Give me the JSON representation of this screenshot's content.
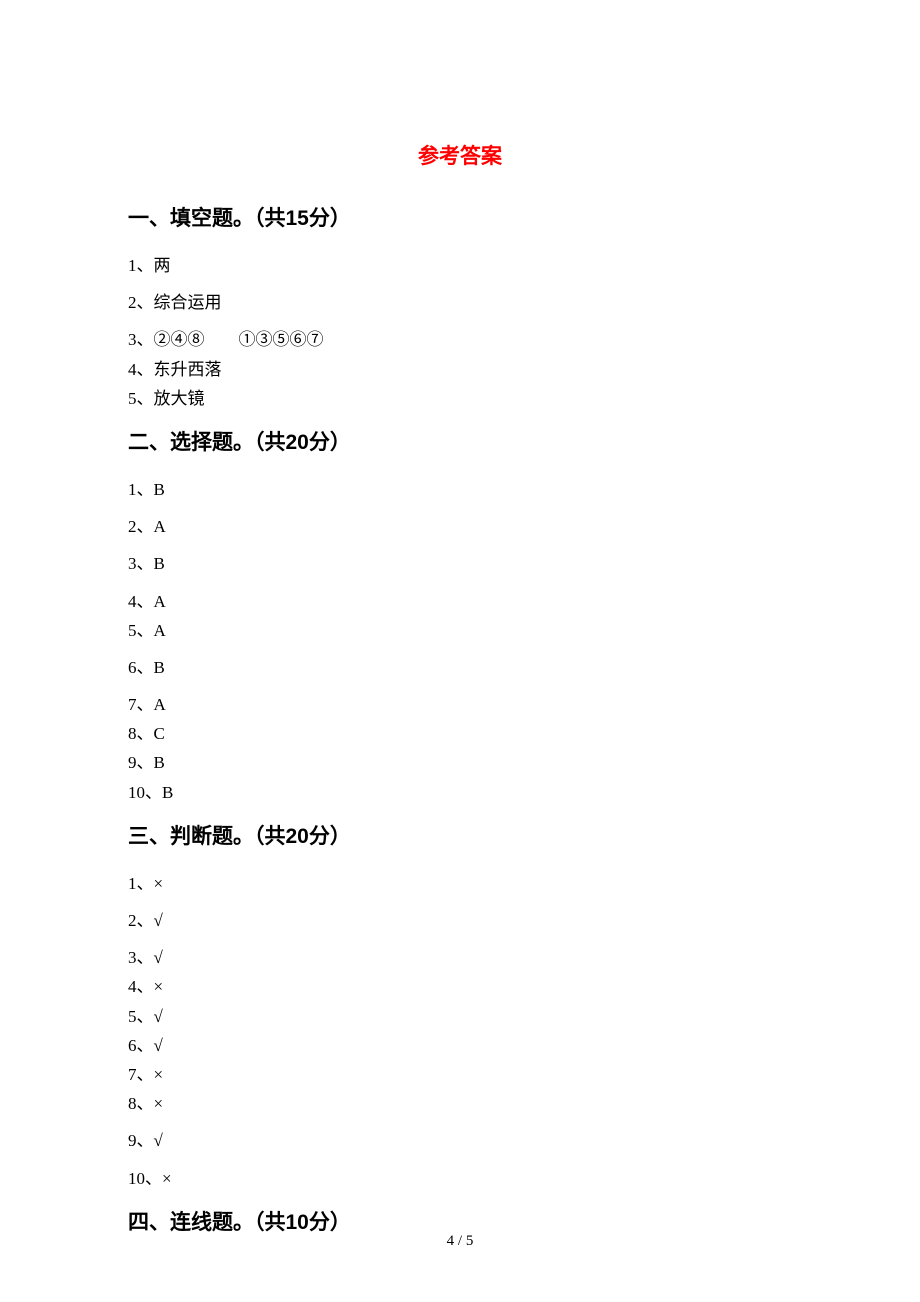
{
  "main_title": "参考答案",
  "sections": [
    {
      "heading": "一、填空题。（共15分）",
      "lines": [
        {
          "text": "1、两",
          "tight": false
        },
        {
          "text": "2、综合运用",
          "tight": false
        },
        {
          "text": "3、②④⑧　　①③⑤⑥⑦",
          "tight": true
        },
        {
          "text": "4、东升西落",
          "tight": true
        },
        {
          "text": "5、放大镜",
          "tight": false
        }
      ]
    },
    {
      "heading": "二、选择题。（共20分）",
      "lines": [
        {
          "text": "1、B",
          "tight": false
        },
        {
          "text": "2、A",
          "tight": false
        },
        {
          "text": "3、B",
          "tight": false
        },
        {
          "text": "4、A",
          "tight": true
        },
        {
          "text": "5、A",
          "tight": false
        },
        {
          "text": "6、B",
          "tight": false
        },
        {
          "text": "7、A",
          "tight": true
        },
        {
          "text": "8、C",
          "tight": true
        },
        {
          "text": "9、B",
          "tight": true
        },
        {
          "text": "10、B",
          "tight": false
        }
      ]
    },
    {
      "heading": "三、判断题。（共20分）",
      "lines": [
        {
          "text": "1、×",
          "tight": false
        },
        {
          "text": "2、√",
          "tight": false
        },
        {
          "text": "3、√",
          "tight": true
        },
        {
          "text": "4、×",
          "tight": true
        },
        {
          "text": "5、√",
          "tight": true
        },
        {
          "text": "6、√",
          "tight": true
        },
        {
          "text": "7、×",
          "tight": true
        },
        {
          "text": "8、×",
          "tight": false
        },
        {
          "text": "9、√",
          "tight": false
        },
        {
          "text": "10、×",
          "tight": false
        }
      ]
    },
    {
      "heading": "四、连线题。（共10分）",
      "lines": []
    }
  ],
  "page_number": "4 / 5"
}
